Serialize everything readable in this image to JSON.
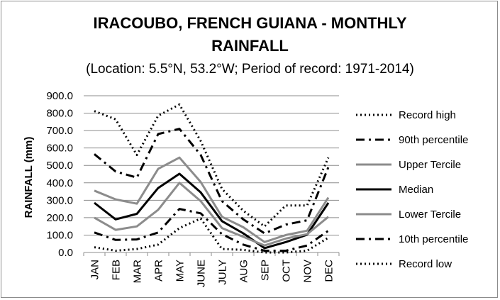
{
  "chart_data": {
    "type": "line",
    "title": "IRACOUBO, FRENCH GUIANA - MONTHLY RAINFALL",
    "title_line1": "IRACOUBO, FRENCH GUIANA - MONTHLY",
    "title_line2": "RAINFALL",
    "subtitle": "(Location: 5.5°N, 53.2°W; Period of record: 1971-2014)",
    "xlabel": "",
    "ylabel": "RAINFALL (mm)",
    "ylim": [
      0,
      900
    ],
    "yticks": [
      "0.0",
      "100.0",
      "200.0",
      "300.0",
      "400.0",
      "500.0",
      "600.0",
      "700.0",
      "800.0",
      "900.0"
    ],
    "grid": true,
    "legend_position": "right",
    "categories": [
      "JAN",
      "FEB",
      "MAR",
      "APR",
      "MAY",
      "JUNE",
      "JULY",
      "AUG",
      "SEP",
      "OCT",
      "NOV",
      "DEC"
    ],
    "series": [
      {
        "name": "Record high",
        "color": "#000000",
        "style": "dotted",
        "values": [
          812,
          765,
          560,
          785,
          850,
          640,
          365,
          240,
          150,
          270,
          270,
          545
        ]
      },
      {
        "name": "90th percentile",
        "color": "#000000",
        "style": "dashdot",
        "values": [
          565,
          465,
          430,
          680,
          710,
          560,
          295,
          190,
          110,
          160,
          185,
          490
        ]
      },
      {
        "name": "Upper Tercile",
        "color": "#8c8c8c",
        "style": "solid",
        "values": [
          355,
          305,
          280,
          480,
          545,
          405,
          205,
          145,
          60,
          100,
          125,
          315
        ]
      },
      {
        "name": "Median",
        "color": "#000000",
        "style": "solid",
        "values": [
          285,
          190,
          222,
          370,
          452,
          345,
          180,
          110,
          25,
          60,
          102,
          285
        ]
      },
      {
        "name": "Lower Tercile",
        "color": "#8c8c8c",
        "style": "solid",
        "values": [
          200,
          130,
          150,
          245,
          400,
          295,
          140,
          90,
          40,
          80,
          105,
          205
        ]
      },
      {
        "name": "10th percentile",
        "color": "#000000",
        "style": "dashdot",
        "values": [
          115,
          72,
          75,
          115,
          250,
          225,
          105,
          45,
          10,
          10,
          40,
          125
        ]
      },
      {
        "name": "Record low",
        "color": "#000000",
        "style": "dotted",
        "values": [
          30,
          10,
          20,
          45,
          140,
          195,
          20,
          15,
          0,
          0,
          10,
          85
        ]
      }
    ]
  }
}
